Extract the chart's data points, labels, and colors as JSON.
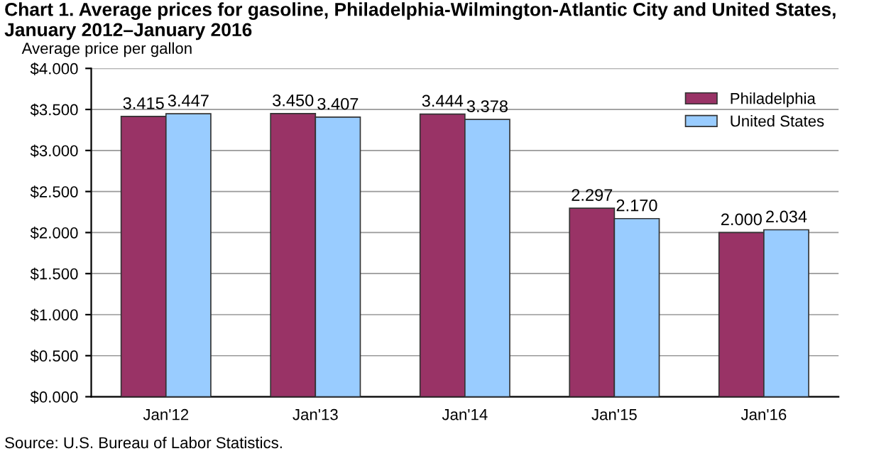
{
  "chart_data": {
    "type": "bar",
    "title": "Chart 1. Average prices for gasoline, Philadelphia-Wilmington-Atlantic City and United States,\nJanuary 2012–January 2016",
    "ylabel": "Average price per gallon",
    "categories": [
      "Jan'12",
      "Jan'13",
      "Jan'14",
      "Jan'15",
      "Jan'16"
    ],
    "series": [
      {
        "name": "Philadelphia",
        "color": "#993366",
        "values": [
          3.415,
          3.45,
          3.444,
          2.297,
          2.0
        ],
        "value_labels": [
          "3.415",
          "3.450",
          "3.444",
          "2.297",
          "2.000"
        ]
      },
      {
        "name": "United States",
        "color": "#99ccff",
        "values": [
          3.447,
          3.407,
          3.378,
          2.17,
          2.034
        ],
        "value_labels": [
          "3.447",
          "3.407",
          "3.378",
          "2.170",
          "2.034"
        ]
      }
    ],
    "ylim": [
      0,
      4
    ],
    "yticks": [
      {
        "value": 0,
        "label": "$0.000"
      },
      {
        "value": 0.5,
        "label": "$0.500"
      },
      {
        "value": 1,
        "label": "$1.000"
      },
      {
        "value": 1.5,
        "label": "$1.500"
      },
      {
        "value": 2,
        "label": "$2.000"
      },
      {
        "value": 2.5,
        "label": "$2.500"
      },
      {
        "value": 3,
        "label": "$3.000"
      },
      {
        "value": 3.5,
        "label": "$3.500"
      },
      {
        "value": 4,
        "label": "$4.000"
      }
    ],
    "grid": "y",
    "legend": "top right",
    "annotations": [
      "Source: U.S. Bureau of Labor Statistics."
    ]
  }
}
